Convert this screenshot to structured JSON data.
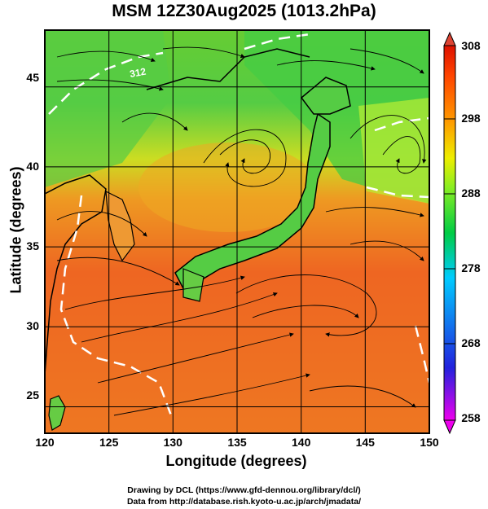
{
  "title": "MSM 12Z30Aug2025 (1013.2hPa)",
  "map": {
    "xlabel": "Longitude (degrees)",
    "ylabel": "Latitude  (degrees)",
    "lon_range": [
      120,
      150
    ],
    "lat_range": [
      22.4,
      47.6
    ],
    "x_ticks": [
      "120",
      "125",
      "130",
      "135",
      "140",
      "145",
      "150"
    ],
    "y_ticks": [
      "45",
      "40",
      "35",
      "30",
      "25"
    ],
    "grid": true,
    "contour_label": "312"
  },
  "colorbar": {
    "ticks": [
      "308",
      "298",
      "288",
      "278",
      "268",
      "258"
    ],
    "range": [
      258,
      308
    ],
    "colors": [
      "#ee00ee",
      "#2222dd",
      "#00ccff",
      "#00cc44",
      "#99ff33",
      "#eeee00",
      "#ff9900",
      "#ff4400",
      "#dd1100"
    ]
  },
  "credits": {
    "line1": "Drawing by DCL (https://www.gfd-dennou.org/library/dcl/)",
    "line2": "Data from http://database.rish.kyoto-u.ac.jp/arch/jmadata/"
  }
}
